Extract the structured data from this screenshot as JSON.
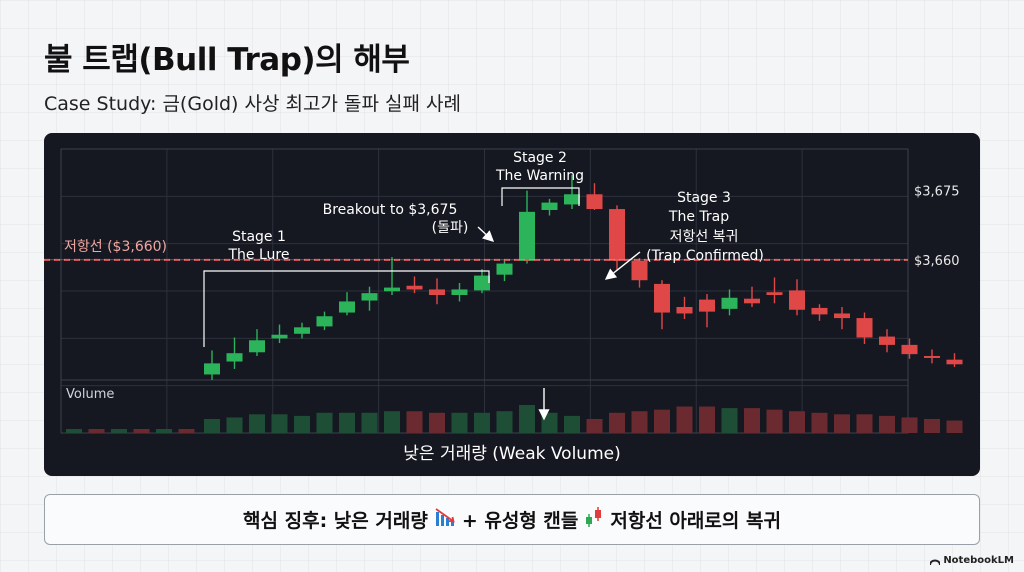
{
  "header": {
    "title": "불 트랩(Bull Trap)의 해부",
    "subtitle": "Case Study: 금(Gold) 사상 최고가 돌파 실패 사례"
  },
  "chart_data": {
    "type": "candlestick",
    "resistance": {
      "value": 3660,
      "label": "저항선 ($3,660)",
      "color": "#e05858"
    },
    "ylim": [
      3634,
      3684
    ],
    "y_ticks": [
      {
        "value": 3675,
        "label": "$3,675"
      },
      {
        "value": 3660,
        "label": "$3,660"
      }
    ],
    "volume_label": "Volume",
    "volume_caption": "낮은 거래량 (Weak Volume)",
    "candles": [
      {
        "o": 3635.2,
        "h": 3640.4,
        "l": 3634.0,
        "c": 3637.6,
        "v": 9
      },
      {
        "o": 3638.0,
        "h": 3643.2,
        "l": 3636.4,
        "c": 3639.8,
        "v": 10
      },
      {
        "o": 3640.0,
        "h": 3645.0,
        "l": 3639.2,
        "c": 3642.6,
        "v": 12
      },
      {
        "o": 3643.0,
        "h": 3646.0,
        "l": 3642.0,
        "c": 3643.8,
        "v": 12
      },
      {
        "o": 3644.0,
        "h": 3646.4,
        "l": 3643.0,
        "c": 3645.4,
        "v": 11
      },
      {
        "o": 3645.6,
        "h": 3648.8,
        "l": 3644.8,
        "c": 3647.8,
        "v": 13
      },
      {
        "o": 3648.6,
        "h": 3653.0,
        "l": 3648.0,
        "c": 3651.0,
        "v": 13
      },
      {
        "o": 3651.2,
        "h": 3654.2,
        "l": 3649.0,
        "c": 3652.8,
        "v": 13
      },
      {
        "o": 3653.2,
        "h": 3660.6,
        "l": 3652.4,
        "c": 3654.0,
        "v": 14
      },
      {
        "o": 3654.4,
        "h": 3656.4,
        "l": 3652.8,
        "c": 3653.6,
        "v": 14
      },
      {
        "o": 3653.6,
        "h": 3656.0,
        "l": 3650.4,
        "c": 3652.4,
        "v": 13
      },
      {
        "o": 3652.4,
        "h": 3655.0,
        "l": 3651.0,
        "c": 3653.6,
        "v": 13
      },
      {
        "o": 3653.4,
        "h": 3658.0,
        "l": 3652.8,
        "c": 3656.6,
        "v": 13
      },
      {
        "o": 3656.8,
        "h": 3660.0,
        "l": 3655.4,
        "c": 3659.2,
        "v": 14
      },
      {
        "o": 3659.8,
        "h": 3675.0,
        "l": 3659.2,
        "c": 3670.4,
        "v": 18
      },
      {
        "o": 3670.8,
        "h": 3673.2,
        "l": 3669.6,
        "c": 3672.4,
        "v": 13
      },
      {
        "o": 3672.0,
        "h": 3678.4,
        "l": 3671.0,
        "c": 3674.2,
        "v": 11
      },
      {
        "o": 3674.2,
        "h": 3676.6,
        "l": 3670.8,
        "c": 3671.0,
        "v": 9
      },
      {
        "o": 3671.0,
        "h": 3671.8,
        "l": 3657.6,
        "c": 3659.8,
        "v": 13
      },
      {
        "o": 3659.8,
        "h": 3660.4,
        "l": 3654.0,
        "c": 3655.6,
        "v": 14
      },
      {
        "o": 3654.8,
        "h": 3655.6,
        "l": 3645.0,
        "c": 3648.6,
        "v": 15
      },
      {
        "o": 3649.8,
        "h": 3652.0,
        "l": 3647.2,
        "c": 3648.4,
        "v": 17
      },
      {
        "o": 3651.4,
        "h": 3652.6,
        "l": 3645.4,
        "c": 3648.8,
        "v": 17
      },
      {
        "o": 3649.4,
        "h": 3653.6,
        "l": 3648.0,
        "c": 3651.8,
        "v": 16
      },
      {
        "o": 3651.6,
        "h": 3654.2,
        "l": 3649.8,
        "c": 3650.6,
        "v": 16
      },
      {
        "o": 3653.0,
        "h": 3656.2,
        "l": 3650.6,
        "c": 3652.4,
        "v": 15
      },
      {
        "o": 3653.4,
        "h": 3655.8,
        "l": 3648.0,
        "c": 3649.2,
        "v": 14
      },
      {
        "o": 3649.6,
        "h": 3650.4,
        "l": 3646.8,
        "c": 3648.2,
        "v": 13
      },
      {
        "o": 3648.4,
        "h": 3649.8,
        "l": 3645.0,
        "c": 3647.4,
        "v": 12
      },
      {
        "o": 3647.4,
        "h": 3648.6,
        "l": 3641.8,
        "c": 3643.2,
        "v": 12
      },
      {
        "o": 3643.4,
        "h": 3645.0,
        "l": 3640.0,
        "c": 3641.6,
        "v": 11
      },
      {
        "o": 3641.6,
        "h": 3643.0,
        "l": 3638.6,
        "c": 3639.6,
        "v": 10
      },
      {
        "o": 3639.2,
        "h": 3640.6,
        "l": 3637.6,
        "c": 3638.8,
        "v": 9
      },
      {
        "o": 3638.4,
        "h": 3639.8,
        "l": 3636.8,
        "c": 3637.4,
        "v": 8
      }
    ],
    "annotations": {
      "stage1": [
        "Stage 1",
        "The Lure"
      ],
      "stage2": [
        "Stage 2",
        "The Warning"
      ],
      "stage3": [
        "Stage 3",
        "The Trap"
      ],
      "breakout": [
        "Breakout to $3,675",
        "(돌파)"
      ],
      "recapture": [
        "저항선 복귀",
        "(Trap Confirmed)"
      ]
    },
    "colors": {
      "up": "#2cb45a",
      "down": "#e04848",
      "up_volume": "#1f4e36",
      "down_volume": "#6a2a2f",
      "panel": "#151821",
      "grid": "#2c313b",
      "text": "#e8e8e8"
    }
  },
  "callout": {
    "prefix": "핵심 징후: 낮은 거래량",
    "middle": "+ 유성형 캔들",
    "suffix": "저항선 아래로의 복귀",
    "icon_volume": "bar-chart-down-icon",
    "icon_candle": "candlestick-icon"
  },
  "brand": {
    "name": "NotebookLM"
  }
}
